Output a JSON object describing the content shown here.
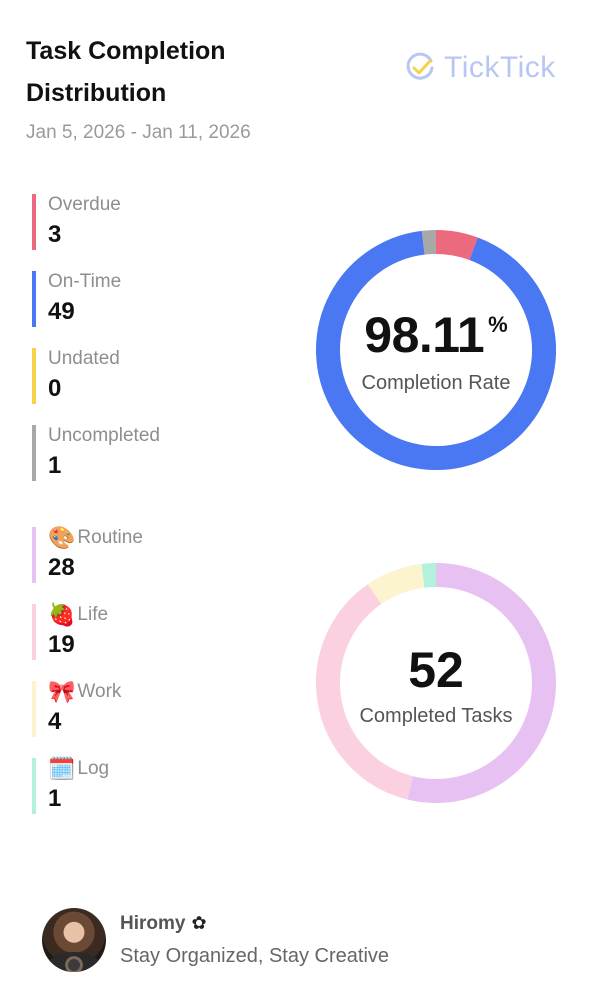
{
  "header": {
    "title": "Task Completion Distribution",
    "date_range": "Jan 5, 2026 - Jan 11, 2026",
    "brand": "TickTick",
    "brand_icon": "check-circle-icon"
  },
  "status_stats": [
    {
      "label": "Overdue",
      "value": "3",
      "color": "#ec6a7e"
    },
    {
      "label": "On-Time",
      "value": "49",
      "color": "#4a77f2"
    },
    {
      "label": "Undated",
      "value": "0",
      "color": "#f6d24a"
    },
    {
      "label": "Uncompleted",
      "value": "1",
      "color": "#a8a8a8"
    }
  ],
  "completion_ring": {
    "rate": "98.11",
    "percent_sign": "%",
    "caption": "Completion Rate"
  },
  "category_stats": [
    {
      "label": "Routine",
      "value": "28",
      "color": "#e8c1f3",
      "emoji": "🎨",
      "icon": "palette-icon"
    },
    {
      "label": "Life",
      "value": "19",
      "color": "#fbd1e2",
      "emoji": "🍓",
      "icon": "strawberry-icon"
    },
    {
      "label": "Work",
      "value": "4",
      "color": "#fcf3cf",
      "emoji": "🎀",
      "icon": "ribbon-icon"
    },
    {
      "label": "Log",
      "value": "1",
      "color": "#b3f1dd",
      "emoji": "🗓️",
      "icon": "calendar-icon"
    }
  ],
  "tasks_ring": {
    "total": "52",
    "caption": "Completed Tasks"
  },
  "chart_data": [
    {
      "type": "pie",
      "categories": [
        "Overdue",
        "On-Time",
        "Undated",
        "Uncompleted"
      ],
      "values": [
        3,
        49,
        0,
        1
      ],
      "colors": [
        "#ec6a7e",
        "#4a77f2",
        "#f6d24a",
        "#a8a8a8"
      ]
    },
    {
      "type": "pie",
      "categories": [
        "Routine",
        "Life",
        "Work",
        "Log"
      ],
      "values": [
        28,
        19,
        4,
        1
      ],
      "colors": [
        "#e8c1f3",
        "#fbd1e2",
        "#fcf3cf",
        "#b3f1dd"
      ]
    }
  ],
  "footer": {
    "user_name": "Hiromy",
    "user_flower": "✿",
    "tagline": "Stay Organized, Stay Creative"
  }
}
